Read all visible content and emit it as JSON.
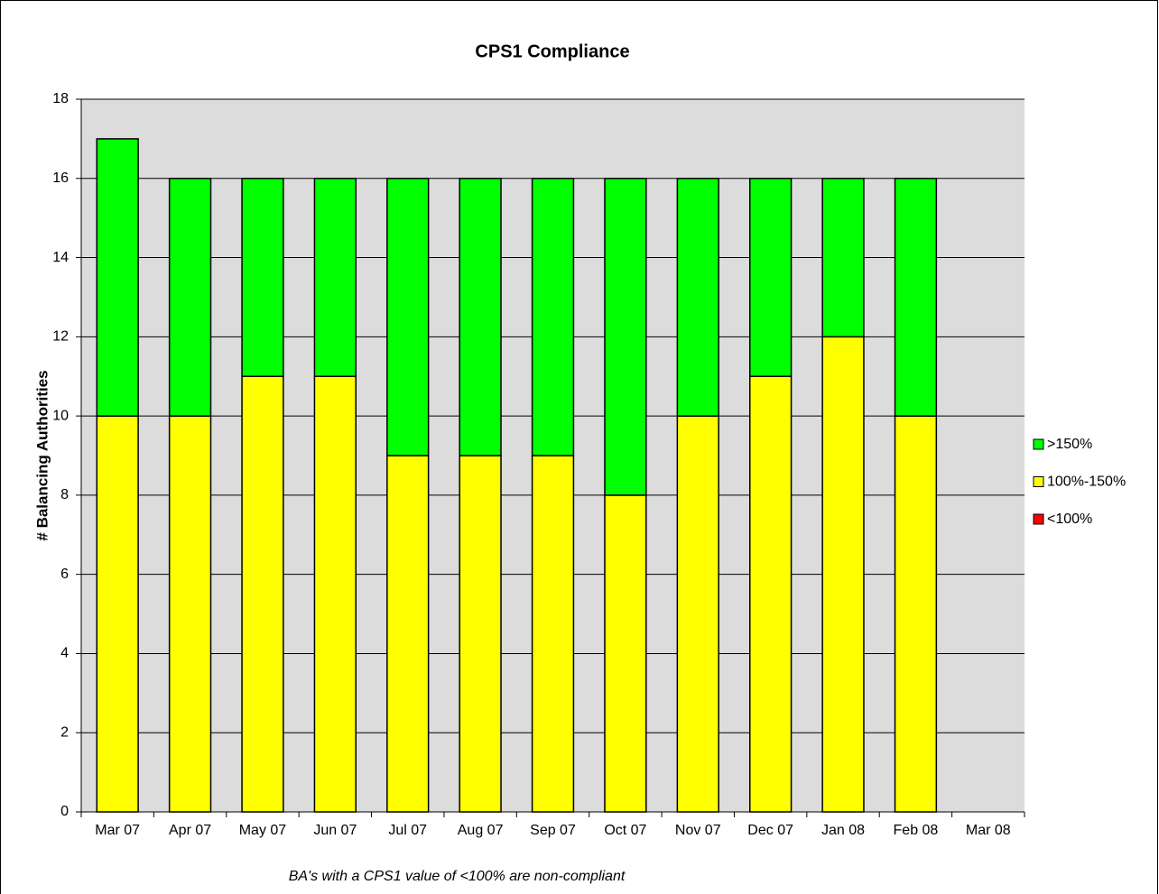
{
  "chart_data": {
    "type": "stacked_bar",
    "title": "CPS1 Compliance",
    "ylabel": "# Balancing Authorities",
    "annotation": "BA's with a CPS1 value of <100% are non-compliant",
    "categories": [
      "Mar 07",
      "Apr 07",
      "May 07",
      "Jun 07",
      "Jul 07",
      "Aug 07",
      "Sep 07",
      "Oct 07",
      "Nov 07",
      "Dec 07",
      "Jan 08",
      "Feb 08",
      "Mar 08"
    ],
    "series": [
      {
        "name": "<100%",
        "color": "#ff0000",
        "values": [
          0,
          0,
          0,
          0,
          0,
          0,
          0,
          0,
          0,
          0,
          0,
          0,
          null
        ]
      },
      {
        "name": "100%-150%",
        "color": "#ffff00",
        "values": [
          10,
          10,
          11,
          11,
          9,
          9,
          9,
          8,
          10,
          11,
          12,
          10,
          null
        ]
      },
      {
        "name": ">150%",
        "color": "#00ff00",
        "values": [
          7,
          6,
          5,
          5,
          7,
          7,
          7,
          8,
          6,
          5,
          4,
          6,
          null
        ]
      }
    ],
    "ylim": [
      0,
      18
    ],
    "yticks": [
      0,
      2,
      4,
      6,
      8,
      10,
      12,
      14,
      16,
      18
    ],
    "grid": true,
    "legend": "right"
  }
}
